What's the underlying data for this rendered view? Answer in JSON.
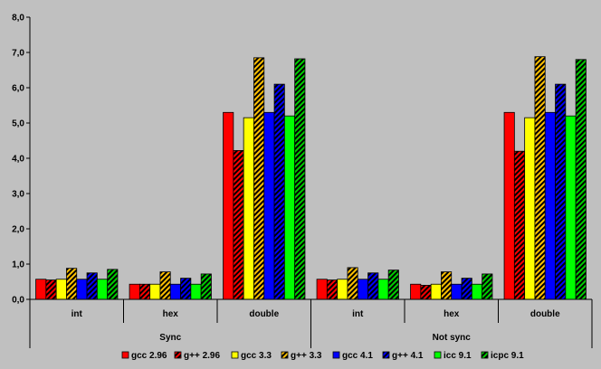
{
  "chart_data": {
    "type": "bar",
    "title": "",
    "xlabel": "",
    "ylabel": "",
    "ylim": [
      0,
      8
    ],
    "yticks": [
      "0,0",
      "1,0",
      "2,0",
      "3,0",
      "4,0",
      "5,0",
      "6,0",
      "7,0",
      "8,0"
    ],
    "groups": [
      "Sync",
      "Not sync"
    ],
    "categories": [
      "int",
      "hex",
      "double",
      "int",
      "hex",
      "double"
    ],
    "grid": false,
    "legend_position": "bottom",
    "series": [
      {
        "name": "gcc 2.96",
        "color": "#ff0000",
        "pattern": "solid",
        "values": [
          0.57,
          0.43,
          5.3,
          0.57,
          0.43,
          5.3
        ]
      },
      {
        "name": "g++ 2.96",
        "color": "#ff0000",
        "pattern": "hatched",
        "values": [
          0.55,
          0.43,
          4.22,
          0.55,
          0.4,
          4.2
        ]
      },
      {
        "name": "gcc 3.3",
        "color": "#ffff00",
        "pattern": "solid",
        "values": [
          0.57,
          0.43,
          5.15,
          0.57,
          0.43,
          5.15
        ]
      },
      {
        "name": "g++ 3.3",
        "color": "#ffc000",
        "pattern": "hatched",
        "values": [
          0.88,
          0.78,
          6.85,
          0.9,
          0.78,
          6.88
        ]
      },
      {
        "name": "gcc 4.1",
        "color": "#0000ff",
        "pattern": "solid",
        "values": [
          0.57,
          0.43,
          5.3,
          0.57,
          0.43,
          5.3
        ]
      },
      {
        "name": "g++ 4.1",
        "color": "#0000ff",
        "pattern": "hatched",
        "values": [
          0.75,
          0.6,
          6.1,
          0.75,
          0.6,
          6.1
        ]
      },
      {
        "name": "icc 9.1",
        "color": "#00ff00",
        "pattern": "solid",
        "values": [
          0.57,
          0.43,
          5.2,
          0.57,
          0.43,
          5.2
        ]
      },
      {
        "name": "icpc 9.1",
        "color": "#00cc00",
        "pattern": "hatched",
        "values": [
          0.85,
          0.72,
          6.82,
          0.83,
          0.72,
          6.8
        ]
      }
    ]
  }
}
